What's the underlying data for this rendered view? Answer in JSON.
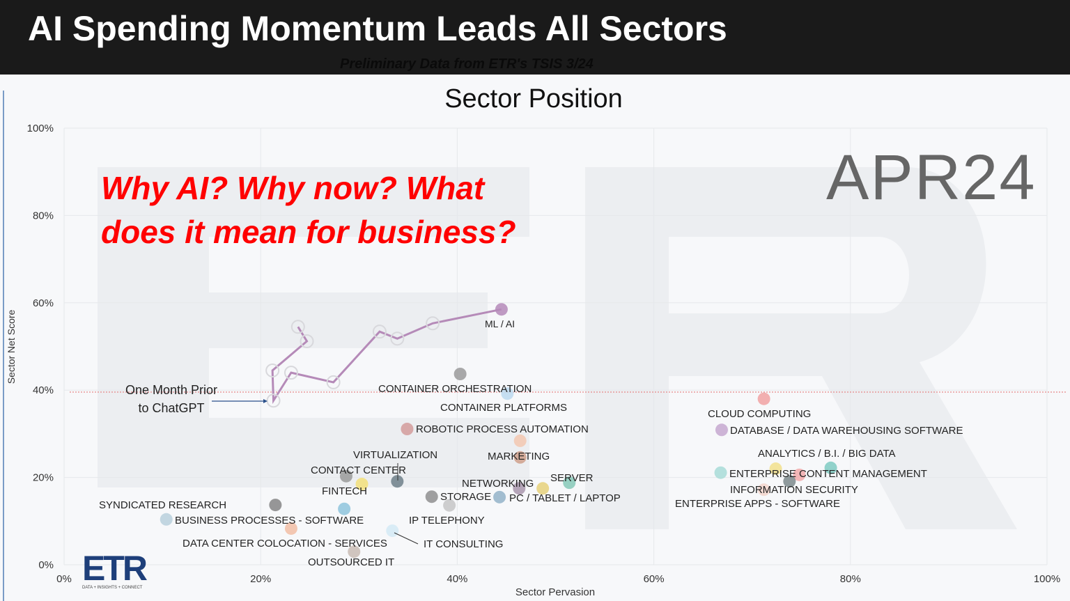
{
  "header": {
    "title": "AI Spending Momentum Leads All Sectors",
    "subtitle": "Preliminary Data  from ETR's TSIS 3/24"
  },
  "callout": {
    "line1": "Why AI? Why now? What",
    "line2": "does it mean for business?",
    "color": "#ff0000"
  },
  "period_label": "APR24",
  "annotation": {
    "line1": "One Month Prior",
    "line2": "to ChatGPT"
  },
  "logo": {
    "text": "ETR",
    "tagline": "DATA + INSIGHTS + CONNECT"
  },
  "chart_data": {
    "type": "scatter",
    "title": "Sector Position",
    "xlabel": "Sector Pervasion",
    "ylabel": "Sector Net Score",
    "xlim": [
      0,
      100
    ],
    "ylim": [
      0,
      100
    ],
    "xticks": [
      "0%",
      "20%",
      "40%",
      "60%",
      "80%",
      "100%"
    ],
    "yticks": [
      "0%",
      "20%",
      "40%",
      "60%",
      "80%",
      "100%"
    ],
    "grid": true,
    "reference_line_y": 40,
    "trail": {
      "name": "ML / AI",
      "color": "#b58ab8",
      "points": [
        [
          23.8,
          54.5
        ],
        [
          24.7,
          51.2
        ],
        [
          21.2,
          44.5
        ],
        [
          21.3,
          37.6
        ],
        [
          23.1,
          44.0
        ],
        [
          27.4,
          41.8
        ],
        [
          32.1,
          53.4
        ],
        [
          33.9,
          51.8
        ],
        [
          37.5,
          55.3
        ],
        [
          44.5,
          58.5
        ]
      ]
    },
    "points": [
      {
        "label": "ML / AI",
        "x": 44.5,
        "y": 58.5,
        "color": "#b58ab8"
      },
      {
        "label": "CONTAINER ORCHESTRATION",
        "x": 40.3,
        "y": 43.7,
        "color": "#9a9a9a"
      },
      {
        "label": "CONTAINER PLATFORMS",
        "x": 45.1,
        "y": 39.2,
        "color": "#bcd9ee"
      },
      {
        "label": "ROBOTIC PROCESS AUTOMATION",
        "x": 34.9,
        "y": 31.1,
        "color": "#d49b9b"
      },
      {
        "label": "",
        "x": 46.4,
        "y": 28.4,
        "color": "#f3c7b0"
      },
      {
        "label": "MARKETING",
        "x": 46.4,
        "y": 24.6,
        "color": "#cf9f8b"
      },
      {
        "label": "VIRTUALIZATION",
        "x": 33.9,
        "y": 19.1,
        "color": "#6f7f8a"
      },
      {
        "label": "CONTACT CENTER",
        "x": 28.7,
        "y": 20.3,
        "color": "#9a9a9a"
      },
      {
        "label": "FINTECH",
        "x": 30.3,
        "y": 18.5,
        "color": "#f3df7a"
      },
      {
        "label": "",
        "x": 28.5,
        "y": 12.8,
        "color": "#8ec4dc"
      },
      {
        "label": "SYNDICATED RESEARCH",
        "x": 21.5,
        "y": 13.7,
        "color": "#858585"
      },
      {
        "label": "BUSINESS PROCESSES - SOFTWARE",
        "x": 10.4,
        "y": 10.4,
        "color": "#b8d0dc"
      },
      {
        "label": "DATA CENTER COLOCATION - SERVICES",
        "x": 23.1,
        "y": 8.3,
        "color": "#f2bea4"
      },
      {
        "label": "IT CONSULTING",
        "x": 33.4,
        "y": 7.8,
        "color": "#d4eaf5"
      },
      {
        "label": "OUTSOURCED IT",
        "x": 29.5,
        "y": 3.0,
        "color": "#c9bcb4"
      },
      {
        "label": "STORAGE",
        "x": 37.4,
        "y": 15.6,
        "color": "#8f8f8f"
      },
      {
        "label": "IP TELEPHONY",
        "x": 39.2,
        "y": 13.6,
        "color": "#c6c6c6"
      },
      {
        "label": "NETWORKING",
        "x": 46.3,
        "y": 17.5,
        "color": "#a996ad"
      },
      {
        "label": "PC / TABLET / LAPTOP",
        "x": 44.3,
        "y": 15.5,
        "color": "#93b3c8"
      },
      {
        "label": "",
        "x": 48.7,
        "y": 17.5,
        "color": "#e6d17a"
      },
      {
        "label": "SERVER",
        "x": 51.4,
        "y": 18.8,
        "color": "#86c9b7"
      },
      {
        "label": "CLOUD COMPUTING",
        "x": 71.2,
        "y": 38.0,
        "color": "#f1a2a2"
      },
      {
        "label": "DATABASE / DATA WAREHOUSING SOFTWARE",
        "x": 66.9,
        "y": 30.9,
        "color": "#c6a8cf"
      },
      {
        "label": "ANALYTICS / B.I. / BIG DATA",
        "x": 72.4,
        "y": 22.0,
        "color": "#f2e08c"
      },
      {
        "label": "ENTERPRISE CONTENT MANAGEMENT",
        "x": 66.8,
        "y": 21.1,
        "color": "#a8dcd7"
      },
      {
        "label": "",
        "x": 78.0,
        "y": 22.2,
        "color": "#7fcbc2"
      },
      {
        "label": "",
        "x": 74.8,
        "y": 20.6,
        "color": "#f2aaaa"
      },
      {
        "label": "INFORMATION SECURITY",
        "x": 73.8,
        "y": 19.1,
        "color": "#7d8a8c"
      },
      {
        "label": "ENTERPRISE APPS - SOFTWARE",
        "x": 71.2,
        "y": 17.2,
        "color": "#f3d6cc"
      }
    ]
  }
}
